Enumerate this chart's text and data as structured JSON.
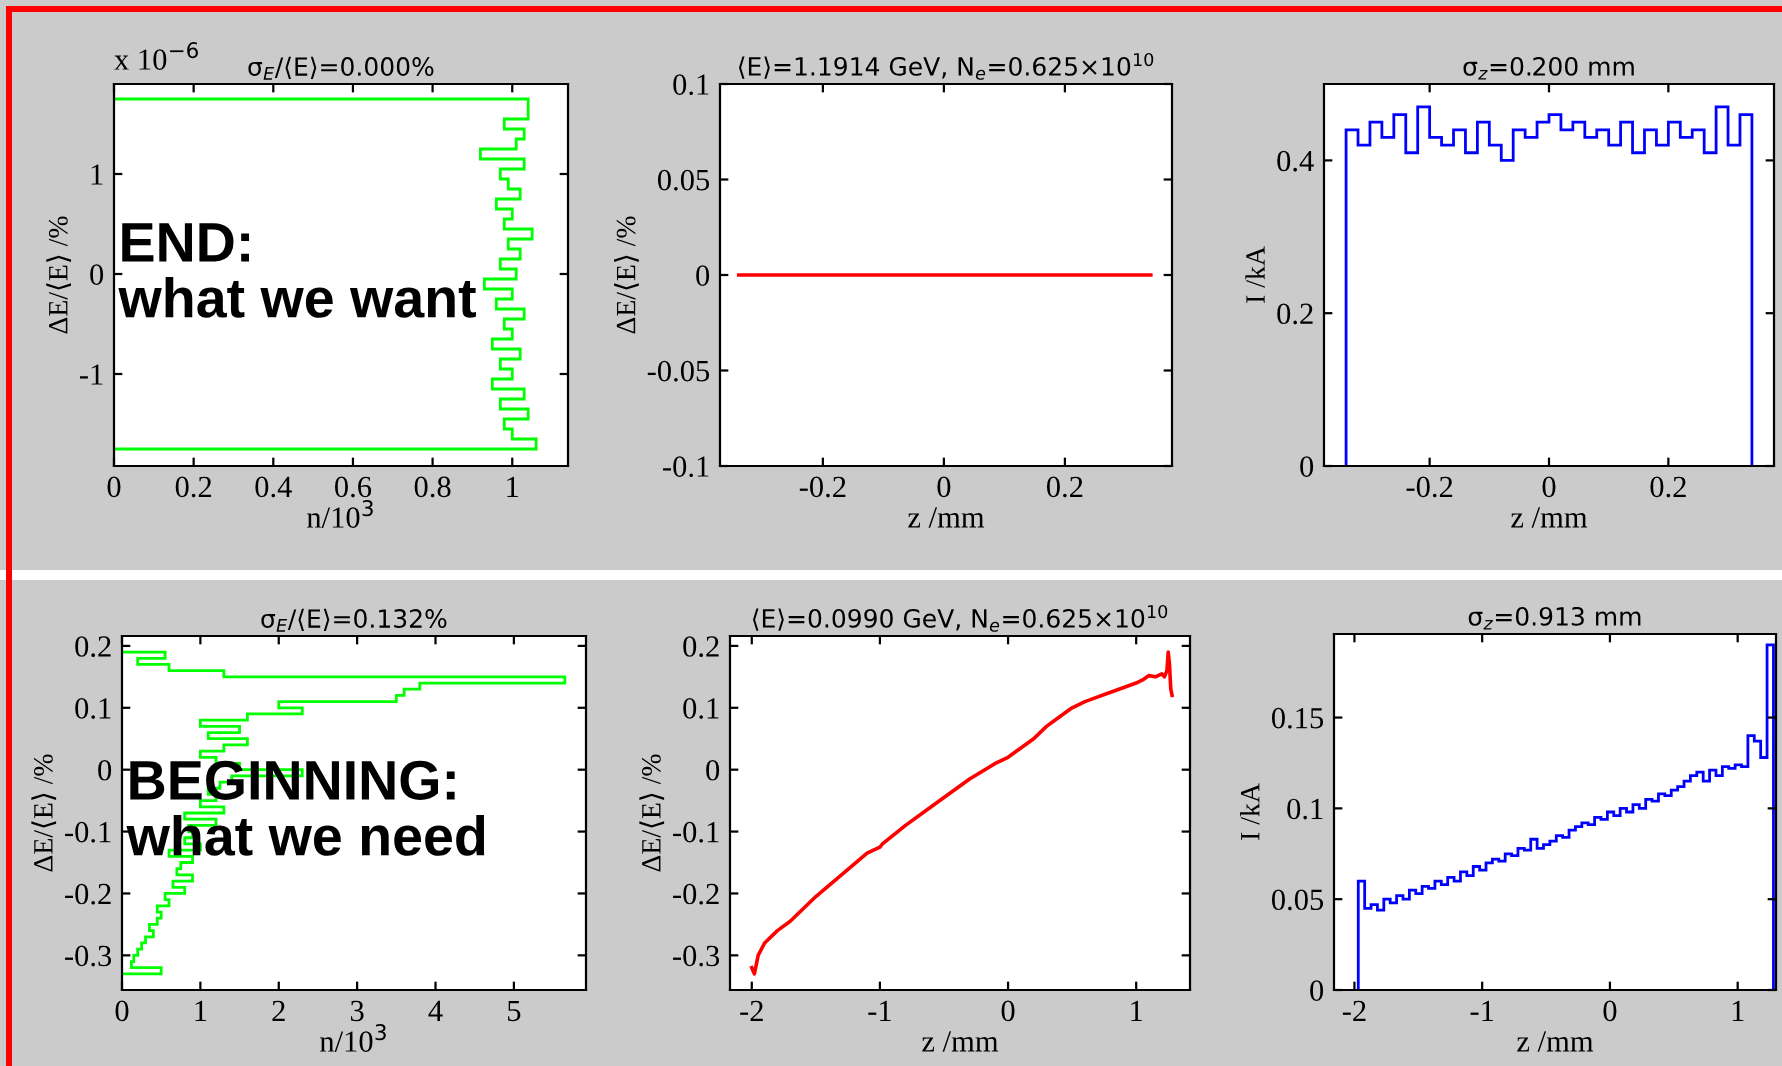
{
  "chart_data": [
    {
      "type": "histogram",
      "orientation": "horizontal",
      "title": "σ$_{E}$/⟨E⟩=0.000%",
      "xlabel": "n/10$^{3}$",
      "ylabel": "ΔE/⟨E⟩ /%",
      "color": "#00ff00",
      "bins": [
        -1.75,
        -1.65,
        -1.55,
        -1.45,
        -1.35,
        -1.25,
        -1.15,
        -1.05,
        -0.95,
        -0.85,
        -0.75,
        -0.65,
        -0.55,
        -0.45,
        -0.35,
        -0.25,
        -0.15,
        -0.05,
        0.05,
        0.15,
        0.25,
        0.35,
        0.45,
        0.55,
        0.65,
        0.75,
        0.85,
        0.95,
        1.05,
        1.15,
        1.25,
        1.35,
        1.45,
        1.55,
        1.65,
        1.75
      ],
      "values": [
        1.06,
        1.0,
        0.98,
        1.04,
        0.97,
        1.03,
        0.95,
        1.0,
        0.97,
        1.02,
        0.95,
        1.0,
        0.98,
        1.03,
        0.96,
        1.0,
        0.93,
        1.01,
        0.97,
        1.02,
        0.99,
        1.05,
        0.98,
        1.0,
        0.96,
        1.02,
        0.99,
        0.97,
        1.03,
        0.92,
        1.01,
        1.03,
        0.98,
        1.04,
        1.04
      ],
      "xlim": [
        0,
        1.14
      ],
      "xticks": [
        0,
        0.2,
        0.4,
        0.6,
        0.8,
        1
      ],
      "ylim": [
        -1.92,
        1.9
      ],
      "yticks": [
        -1,
        0,
        1
      ],
      "annotations": [
        "x 10$^{−6}$",
        "END:\nwhat we want"
      ]
    },
    {
      "type": "line",
      "title": "⟨E⟩=1.1914 GeV, N$_{e}$=0.625×10$^{10}$",
      "xlabel": "z /mm",
      "ylabel": "ΔE/⟨E⟩ /%",
      "color": "#ff0000",
      "x": [
        -0.339,
        0.342
      ],
      "values": [
        0,
        0
      ],
      "xlim": [
        -0.37,
        0.377
      ],
      "xticks": [
        -0.2,
        0,
        0.2
      ],
      "ylim": [
        -0.1,
        0.1
      ],
      "yticks": [
        -0.1,
        -0.05,
        0,
        0.05,
        0.1
      ]
    },
    {
      "type": "histogram",
      "title": "σ$_{z}$=0.200 mm",
      "xlabel": "z /mm",
      "ylabel": "I /kA",
      "color": "#0000ff",
      "bins": [
        -0.34,
        -0.32,
        -0.3,
        -0.28,
        -0.26,
        -0.24,
        -0.22,
        -0.2,
        -0.18,
        -0.16,
        -0.14,
        -0.12,
        -0.1,
        -0.08,
        -0.06,
        -0.04,
        -0.02,
        0,
        0.02,
        0.04,
        0.06,
        0.08,
        0.1,
        0.12,
        0.14,
        0.16,
        0.18,
        0.2,
        0.22,
        0.24,
        0.26,
        0.28,
        0.3,
        0.32,
        0.34
      ],
      "values": [
        0.44,
        0.42,
        0.45,
        0.43,
        0.46,
        0.41,
        0.47,
        0.43,
        0.42,
        0.44,
        0.41,
        0.45,
        0.42,
        0.4,
        0.44,
        0.43,
        0.45,
        0.46,
        0.44,
        0.45,
        0.43,
        0.44,
        0.42,
        0.45,
        0.41,
        0.44,
        0.42,
        0.45,
        0.43,
        0.44,
        0.41,
        0.47,
        0.42,
        0.46
      ],
      "xlim": [
        -0.377,
        0.377
      ],
      "xticks": [
        -0.2,
        0,
        0.2
      ],
      "ylim": [
        0,
        0.5
      ],
      "yticks": [
        0,
        0.2,
        0.4
      ]
    },
    {
      "type": "histogram",
      "orientation": "horizontal",
      "title": "σ$_{E}$/⟨E⟩=0.132%",
      "xlabel": "n/10$^{3}$",
      "ylabel": "ΔE/⟨E⟩ /%",
      "color": "#00ff00",
      "bins": [
        -0.33,
        -0.32,
        -0.31,
        -0.3,
        -0.29,
        -0.28,
        -0.27,
        -0.26,
        -0.25,
        -0.24,
        -0.23,
        -0.22,
        -0.21,
        -0.2,
        -0.19,
        -0.18,
        -0.17,
        -0.16,
        -0.15,
        -0.14,
        -0.13,
        -0.12,
        -0.11,
        -0.1,
        -0.09,
        -0.08,
        -0.07,
        -0.06,
        -0.05,
        -0.04,
        -0.03,
        -0.02,
        -0.01,
        0,
        0.01,
        0.02,
        0.03,
        0.04,
        0.05,
        0.06,
        0.07,
        0.08,
        0.09,
        0.1,
        0.11,
        0.12,
        0.13,
        0.14,
        0.15,
        0.16,
        0.17,
        0.18,
        0.19
      ],
      "values": [
        0.5,
        0.12,
        0.15,
        0.2,
        0.25,
        0.3,
        0.4,
        0.35,
        0.45,
        0.5,
        0.45,
        0.6,
        0.55,
        0.8,
        0.65,
        0.9,
        0.7,
        0.75,
        0.9,
        0.6,
        1.0,
        0.8,
        0.9,
        0.85,
        1.2,
        0.8,
        1.3,
        1.0,
        1.2,
        1.1,
        1.25,
        1.4,
        2.3,
        1.5,
        1.2,
        1.0,
        1.3,
        1.6,
        1.1,
        1.5,
        1.0,
        1.6,
        2.3,
        2.0,
        3.5,
        3.6,
        3.8,
        5.65,
        1.3,
        0.6,
        0.2,
        0.55
      ],
      "xlim": [
        0,
        5.92
      ],
      "xticks": [
        0,
        1,
        2,
        3,
        4,
        5
      ],
      "ylim": [
        -0.356,
        0.216
      ],
      "yticks": [
        -0.3,
        -0.2,
        -0.1,
        0,
        0.1,
        0.2
      ],
      "annotations": [
        "BEGINNING:\nwhat we need"
      ]
    },
    {
      "type": "line",
      "title": "⟨E⟩=0.0990 GeV, N$_{e}$=0.625×10$^{10}$",
      "xlabel": "z /mm",
      "ylabel": "ΔE/⟨E⟩ /%",
      "color": "#ff0000",
      "x": [
        -2,
        -1.98,
        -1.95,
        -1.9,
        -1.8,
        -1.7,
        -1.5,
        -1.3,
        -1.1,
        -1.0,
        -0.98,
        -0.8,
        -0.6,
        -0.4,
        -0.3,
        -0.1,
        0,
        0.2,
        0.3,
        0.4,
        0.5,
        0.6,
        0.8,
        1.0,
        1.05,
        1.1,
        1.15,
        1.2,
        1.22,
        1.24,
        1.25,
        1.26,
        1.27,
        1.28
      ],
      "values": [
        -0.32,
        -0.33,
        -0.3,
        -0.28,
        -0.26,
        -0.245,
        -0.205,
        -0.17,
        -0.135,
        -0.125,
        -0.12,
        -0.09,
        -0.06,
        -0.03,
        -0.015,
        0.01,
        0.02,
        0.05,
        0.07,
        0.085,
        0.1,
        0.11,
        0.125,
        0.14,
        0.145,
        0.152,
        0.15,
        0.155,
        0.15,
        0.16,
        0.19,
        0.17,
        0.13,
        0.12
      ],
      "xlim": [
        -2.17,
        1.42
      ],
      "xticks": [
        -2,
        -1,
        0,
        1
      ],
      "ylim": [
        -0.356,
        0.216
      ],
      "yticks": [
        -0.3,
        -0.2,
        -0.1,
        0,
        0.1,
        0.2
      ]
    },
    {
      "type": "histogram",
      "title": "σ$_{z}$=0.913 mm",
      "xlabel": "z /mm",
      "ylabel": "I /kA",
      "color": "#0000ff",
      "bins": [
        -1.97,
        -1.92,
        -1.87,
        -1.82,
        -1.77,
        -1.72,
        -1.67,
        -1.62,
        -1.57,
        -1.52,
        -1.47,
        -1.42,
        -1.37,
        -1.32,
        -1.27,
        -1.22,
        -1.17,
        -1.12,
        -1.07,
        -1.02,
        -0.97,
        -0.92,
        -0.87,
        -0.82,
        -0.77,
        -0.72,
        -0.67,
        -0.62,
        -0.57,
        -0.52,
        -0.47,
        -0.42,
        -0.37,
        -0.32,
        -0.27,
        -0.22,
        -0.17,
        -0.12,
        -0.07,
        -0.02,
        0.03,
        0.08,
        0.13,
        0.18,
        0.23,
        0.28,
        0.33,
        0.38,
        0.43,
        0.48,
        0.53,
        0.58,
        0.63,
        0.68,
        0.73,
        0.78,
        0.83,
        0.88,
        0.93,
        0.98,
        1.03,
        1.08,
        1.13,
        1.18,
        1.23,
        1.28
      ],
      "values": [
        0.06,
        0.045,
        0.047,
        0.044,
        0.05,
        0.048,
        0.052,
        0.05,
        0.055,
        0.053,
        0.057,
        0.056,
        0.06,
        0.058,
        0.062,
        0.06,
        0.065,
        0.063,
        0.068,
        0.066,
        0.07,
        0.072,
        0.071,
        0.075,
        0.074,
        0.078,
        0.077,
        0.083,
        0.078,
        0.08,
        0.082,
        0.085,
        0.084,
        0.088,
        0.09,
        0.092,
        0.091,
        0.095,
        0.094,
        0.098,
        0.096,
        0.1,
        0.098,
        0.102,
        0.1,
        0.105,
        0.104,
        0.108,
        0.107,
        0.11,
        0.112,
        0.115,
        0.118,
        0.12,
        0.115,
        0.121,
        0.118,
        0.123,
        0.122,
        0.124,
        0.123,
        0.14,
        0.137,
        0.128,
        0.19
      ],
      "xlim": [
        -2.16,
        1.3
      ],
      "xticks": [
        -2,
        -1,
        0,
        1
      ],
      "ylim": [
        0,
        0.196
      ],
      "yticks": [
        0,
        0.05,
        0.1,
        0.15
      ]
    }
  ]
}
